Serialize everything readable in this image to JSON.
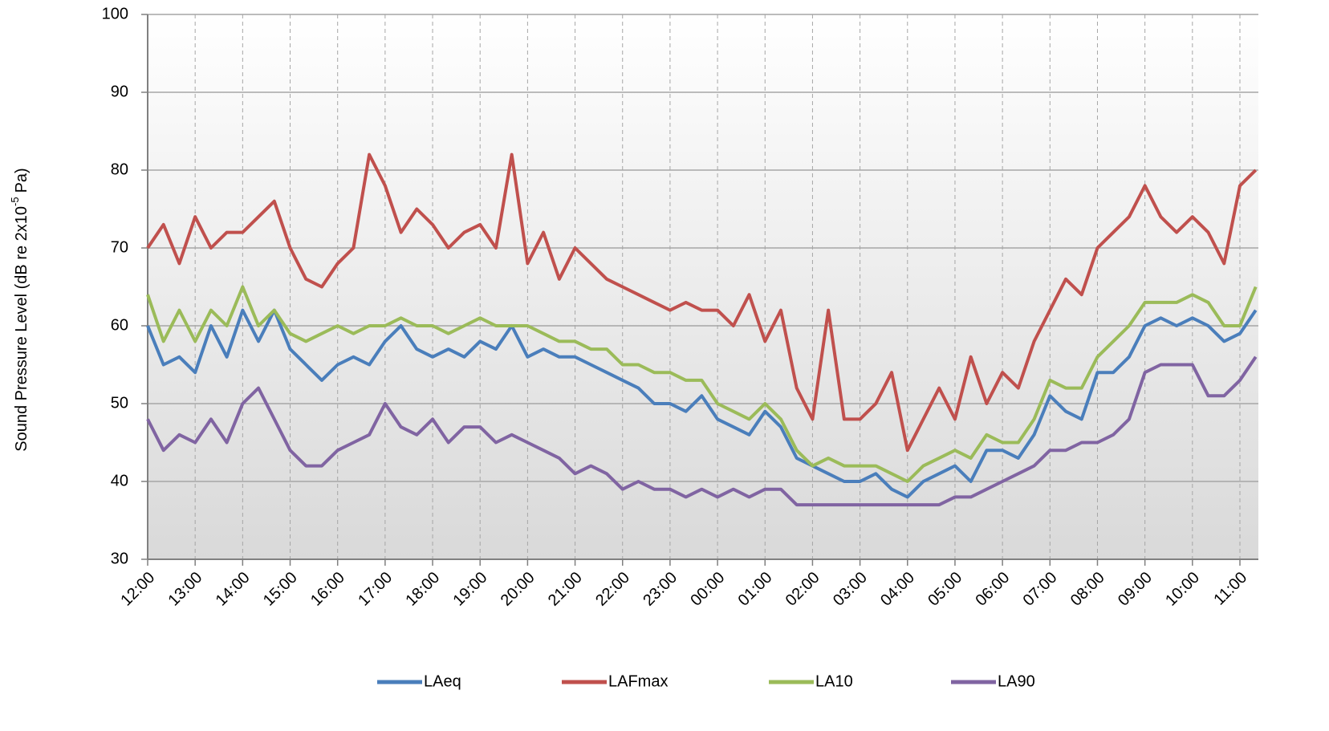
{
  "chart_data": {
    "type": "line",
    "y_label": [
      "Sound Pressure Level (dB re 2x10",
      "-5",
      "Pa)"
    ],
    "categories": [
      "12:00",
      null,
      null,
      "13:00",
      null,
      null,
      "14:00",
      null,
      null,
      "15:00",
      null,
      null,
      "16:00",
      null,
      null,
      "17:00",
      null,
      null,
      "18:00",
      null,
      null,
      "19:00",
      null,
      null,
      "20:00",
      null,
      null,
      "21:00",
      null,
      null,
      "22:00",
      null,
      null,
      "23:00",
      null,
      null,
      "00:00",
      null,
      null,
      "01:00",
      null,
      null,
      "02:00",
      null,
      null,
      "03:00",
      null,
      null,
      "04:00",
      null,
      null,
      "05:00",
      null,
      null,
      "06:00",
      null,
      null,
      "07:00",
      null,
      null,
      "08:00",
      null,
      null,
      "09:00",
      null,
      null,
      "10:00",
      null,
      null,
      "11:00",
      null
    ],
    "series": [
      {
        "name": "LAeq",
        "color": "#4a7ebb",
        "values": [
          60,
          55,
          56,
          54,
          60,
          56,
          62,
          58,
          62,
          57,
          55,
          53,
          55,
          56,
          55,
          58,
          60,
          57,
          56,
          57,
          56,
          58,
          57,
          60,
          56,
          57,
          56,
          56,
          55,
          54,
          53,
          52,
          50,
          50,
          49,
          51,
          48,
          47,
          46,
          49,
          47,
          43,
          42,
          41,
          40,
          40,
          41,
          39,
          38,
          40,
          41,
          42,
          40,
          44,
          44,
          43,
          46,
          51,
          49,
          48,
          54,
          54,
          56,
          60,
          61,
          60,
          61,
          60,
          58,
          59,
          62
        ]
      },
      {
        "name": "LAFmax",
        "color": "#c0504d",
        "values": [
          70,
          73,
          68,
          74,
          70,
          72,
          72,
          74,
          76,
          70,
          66,
          65,
          68,
          70,
          82,
          78,
          72,
          75,
          73,
          70,
          72,
          73,
          70,
          82,
          68,
          72,
          66,
          70,
          68,
          66,
          65,
          64,
          63,
          62,
          63,
          62,
          62,
          60,
          64,
          58,
          62,
          52,
          48,
          62,
          48,
          48,
          50,
          54,
          44,
          48,
          52,
          48,
          56,
          50,
          54,
          52,
          58,
          62,
          66,
          64,
          70,
          72,
          74,
          78,
          74,
          72,
          74,
          72,
          68,
          78,
          80
        ]
      },
      {
        "name": "LA10",
        "color": "#9bbb59",
        "values": [
          64,
          58,
          62,
          58,
          62,
          60,
          65,
          60,
          62,
          59,
          58,
          59,
          60,
          59,
          60,
          60,
          61,
          60,
          60,
          59,
          60,
          61,
          60,
          60,
          60,
          59,
          58,
          58,
          57,
          57,
          55,
          55,
          54,
          54,
          53,
          53,
          50,
          49,
          48,
          50,
          48,
          44,
          42,
          43,
          42,
          42,
          42,
          41,
          40,
          42,
          43,
          44,
          43,
          46,
          45,
          45,
          48,
          53,
          52,
          52,
          56,
          58,
          60,
          63,
          63,
          63,
          64,
          63,
          60,
          60,
          65
        ]
      },
      {
        "name": "LA90",
        "color": "#8064a2",
        "values": [
          48,
          44,
          46,
          45,
          48,
          45,
          50,
          52,
          48,
          44,
          42,
          42,
          44,
          45,
          46,
          50,
          47,
          46,
          48,
          45,
          47,
          47,
          45,
          46,
          45,
          44,
          43,
          41,
          42,
          41,
          39,
          40,
          39,
          39,
          38,
          39,
          38,
          39,
          38,
          39,
          39,
          37,
          37,
          37,
          37,
          37,
          37,
          37,
          37,
          37,
          37,
          38,
          38,
          39,
          40,
          41,
          42,
          44,
          44,
          45,
          45,
          46,
          48,
          54,
          55,
          55,
          55,
          51,
          51,
          53,
          56
        ]
      }
    ],
    "ylim": [
      30,
      100
    ],
    "yticks": [
      30,
      40,
      50,
      60,
      70,
      80,
      90,
      100
    ],
    "grid": true,
    "legend": "bottom"
  }
}
